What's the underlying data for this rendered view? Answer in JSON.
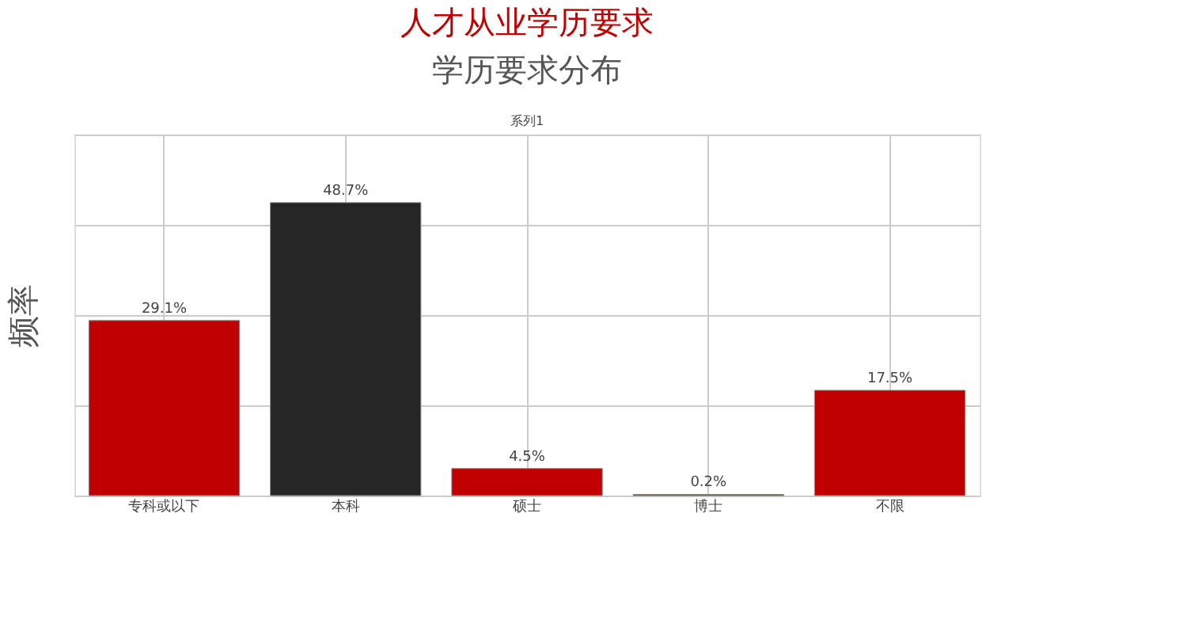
{
  "chart_data": {
    "type": "bar",
    "title": "人才从业学历要求",
    "subtitle": "学历要求分布",
    "ylabel": "频率",
    "annotations": [
      "系列1"
    ],
    "categories": [
      "专科或以下",
      "本科",
      "硕士",
      "博士",
      "不限"
    ],
    "values": [
      29.1,
      48.7,
      4.5,
      0.2,
      17.5
    ],
    "colors": [
      "#c00000",
      "#262626",
      "#c00000",
      "#c00000",
      "#c00000"
    ],
    "value_labels": [
      "29.1%",
      "48.7%",
      "4.5%",
      "0.2%",
      "17.5%"
    ],
    "ylim": [
      0,
      60
    ],
    "yticks": [
      {
        "value": 0,
        "label": null
      },
      {
        "value": 15,
        "label": null
      },
      {
        "value": 30,
        "label": null
      },
      {
        "value": 45,
        "label": null
      },
      {
        "value": 60,
        "label": null
      }
    ],
    "grid": true
  }
}
